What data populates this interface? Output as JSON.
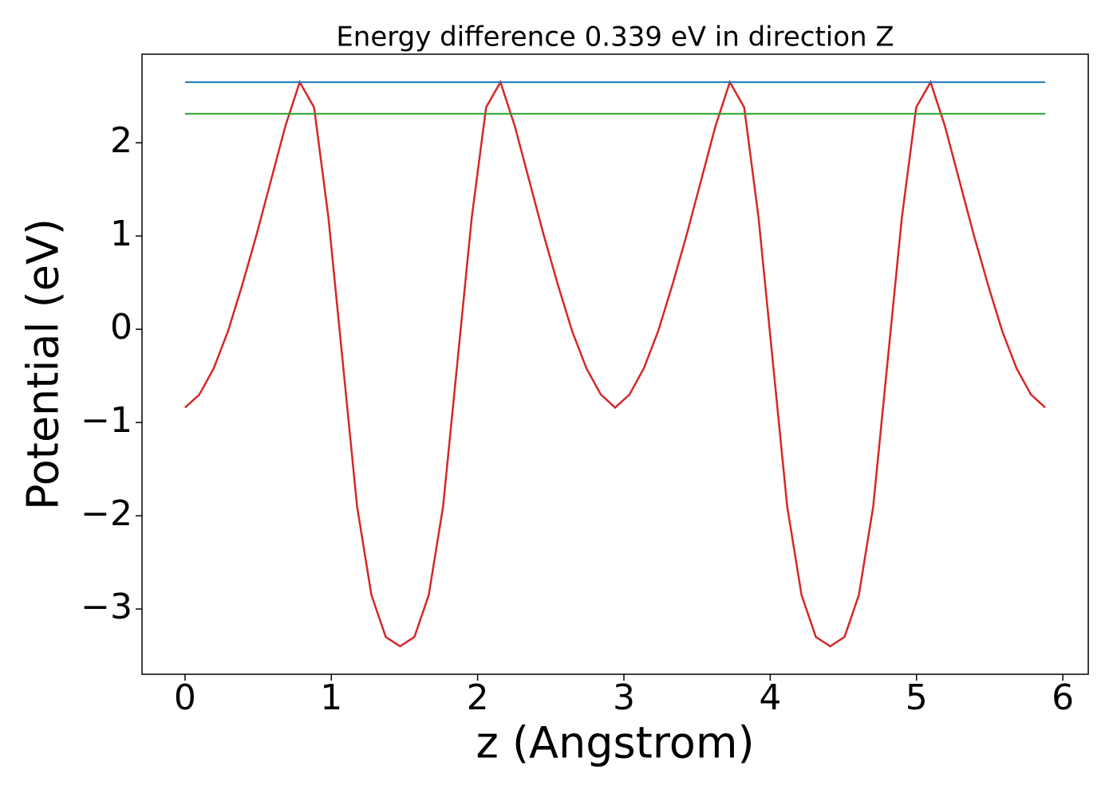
{
  "chart_data": {
    "type": "line",
    "title": "Energy difference 0.339 eV in direction Z",
    "x_label": "z (Angstrom)",
    "y_label": "Potential (eV)",
    "xlim": [
      -0.294,
      6.174
    ],
    "ylim": [
      -3.7,
      2.95
    ],
    "xticks": [
      0,
      1,
      2,
      3,
      4,
      5,
      6
    ],
    "yticks": [
      {
        "value": -3,
        "label": "−3"
      },
      {
        "value": -2,
        "label": "−2"
      },
      {
        "value": -1,
        "label": "−1"
      },
      0,
      1,
      2
    ],
    "series": [
      {
        "color": "#d62728",
        "x": [
          0,
          0.098,
          0.196,
          0.294,
          0.392,
          0.49,
          0.588,
          0.686,
          0.784,
          0.882,
          0.98,
          1.078,
          1.176,
          1.274,
          1.372,
          1.47,
          1.568,
          1.666,
          1.764,
          1.862,
          1.96,
          2.058,
          2.156,
          2.254,
          2.352,
          2.45,
          2.548,
          2.646,
          2.744,
          2.842,
          2.94,
          3.038,
          3.136,
          3.234,
          3.332,
          3.43,
          3.528,
          3.626,
          3.724,
          3.822,
          3.92,
          4.018,
          4.116,
          4.214,
          4.312,
          4.41,
          4.508,
          4.606,
          4.704,
          4.802,
          4.9,
          4.998,
          5.096,
          5.194,
          5.292,
          5.39,
          5.488,
          5.586,
          5.684,
          5.782,
          5.88
        ],
        "values": [
          -0.84,
          -0.7,
          -0.42,
          -0.02,
          0.48,
          1.02,
          1.6,
          2.18,
          2.65,
          2.38,
          1.2,
          -0.35,
          -1.9,
          -2.85,
          -3.3,
          -3.4,
          -3.3,
          -2.85,
          -1.9,
          -0.35,
          1.2,
          2.38,
          2.65,
          2.18,
          1.6,
          1.02,
          0.48,
          -0.02,
          -0.42,
          -0.7,
          -0.84,
          -0.7,
          -0.42,
          -0.02,
          0.48,
          1.02,
          1.6,
          2.18,
          2.65,
          2.38,
          1.2,
          -0.35,
          -1.9,
          -2.85,
          -3.3,
          -3.4,
          -3.3,
          -2.85,
          -1.9,
          -0.35,
          1.2,
          2.38,
          2.65,
          2.18,
          1.6,
          1.02,
          0.48,
          -0.02,
          -0.42,
          -0.7,
          -0.84
        ]
      },
      {
        "color": "#1f77b4",
        "x": [
          0,
          5.88
        ],
        "values": [
          2.65,
          2.65
        ]
      },
      {
        "color": "#2ca02c",
        "x": [
          0,
          5.88
        ],
        "values": [
          2.311,
          2.311
        ]
      }
    ]
  }
}
